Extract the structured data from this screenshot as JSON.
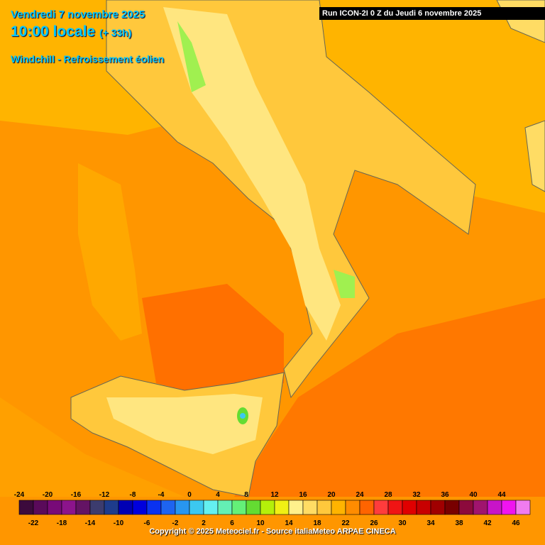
{
  "header": {
    "date": "Vendredi 7 novembre 2025",
    "time": "10:00 locale",
    "offset": "(+ 33h)",
    "parameter": "Windchill - Refroissement éolien"
  },
  "run": "Run ICON-2I 0 Z du Jeudi 6 novembre 2025",
  "scale": {
    "values": [
      -24,
      -22,
      -20,
      -18,
      -16,
      -14,
      -12,
      -10,
      -8,
      -6,
      -4,
      -2,
      0,
      2,
      4,
      6,
      8,
      10,
      12,
      14,
      16,
      18,
      20,
      22,
      24,
      26,
      28,
      30,
      32,
      34,
      36,
      38,
      40,
      42,
      44,
      46
    ],
    "colors": [
      "#3c0a3c",
      "#5a0a5a",
      "#780a78",
      "#8c148c",
      "#641464",
      "#3c3c6e",
      "#1e3c8c",
      "#0000b4",
      "#0000dc",
      "#0a32f0",
      "#1e64f0",
      "#2896f0",
      "#3cc8f0",
      "#64f0f0",
      "#64f0b4",
      "#64f078",
      "#64dc32",
      "#b4f00a",
      "#f0f014",
      "#fff08c",
      "#ffdc64",
      "#ffc83c",
      "#ffb400",
      "#ff8c00",
      "#ff6400",
      "#ff3c3c",
      "#f01414",
      "#e00000",
      "#c80000",
      "#a00000",
      "#780000",
      "#8c0a3c",
      "#a0146e",
      "#c814c8",
      "#f014f0",
      "#f07cf0"
    ]
  },
  "copyright": "Copyright © 2025 Meteociel.fr - Source italiaMeteo ARPAE CINECA"
}
